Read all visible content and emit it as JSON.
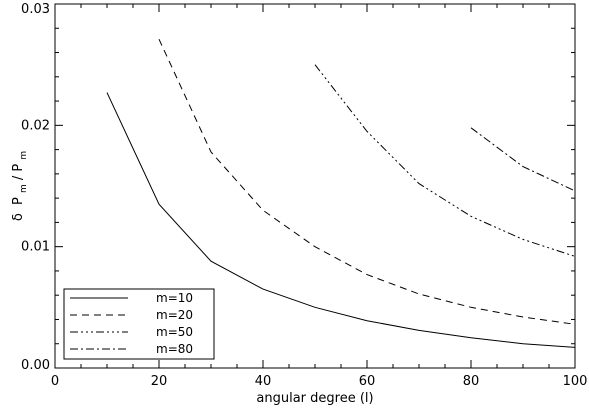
{
  "chart_data": {
    "type": "line",
    "title": "",
    "xlabel": "angular degree (l)",
    "ylabel": "δ P_m / P_m",
    "ylabel_parts": {
      "delta": "δ",
      "p1": "P",
      "sub1": "m",
      "slash": " / ",
      "p2": "P",
      "sub2": "m"
    },
    "xlim": [
      0,
      100
    ],
    "ylim": [
      0.0,
      0.03
    ],
    "xticks": [
      0,
      20,
      40,
      60,
      80,
      100
    ],
    "xtick_labels": [
      "0",
      "20",
      "40",
      "60",
      "80",
      "100"
    ],
    "yticks": [
      0.0,
      0.01,
      0.02,
      0.03
    ],
    "ytick_labels": [
      "0.00",
      "0.01",
      "0.02",
      "0.03"
    ],
    "grid": false,
    "legend_position": "bottom-left",
    "series": [
      {
        "name": "m=10",
        "dash": "solid",
        "x": [
          10,
          20,
          30,
          40,
          50,
          60,
          70,
          80,
          90,
          100
        ],
        "y": [
          0.0227,
          0.0135,
          0.0088,
          0.0065,
          0.005,
          0.0039,
          0.0031,
          0.0025,
          0.002,
          0.0017
        ]
      },
      {
        "name": "m=20",
        "dash": "dashed",
        "x": [
          20,
          30,
          40,
          50,
          60,
          70,
          80,
          90,
          100
        ],
        "y": [
          0.0271,
          0.0178,
          0.013,
          0.01,
          0.0077,
          0.0061,
          0.005,
          0.0042,
          0.0036
        ]
      },
      {
        "name": "m=50",
        "dash": "dash-dot-dot-dot",
        "x": [
          50,
          60,
          70,
          80,
          90,
          100
        ],
        "y": [
          0.025,
          0.0195,
          0.0152,
          0.0125,
          0.0106,
          0.0092
        ]
      },
      {
        "name": "m=80",
        "dash": "dash-dot",
        "x": [
          80,
          90,
          100
        ],
        "y": [
          0.0198,
          0.0166,
          0.0146
        ]
      }
    ]
  }
}
